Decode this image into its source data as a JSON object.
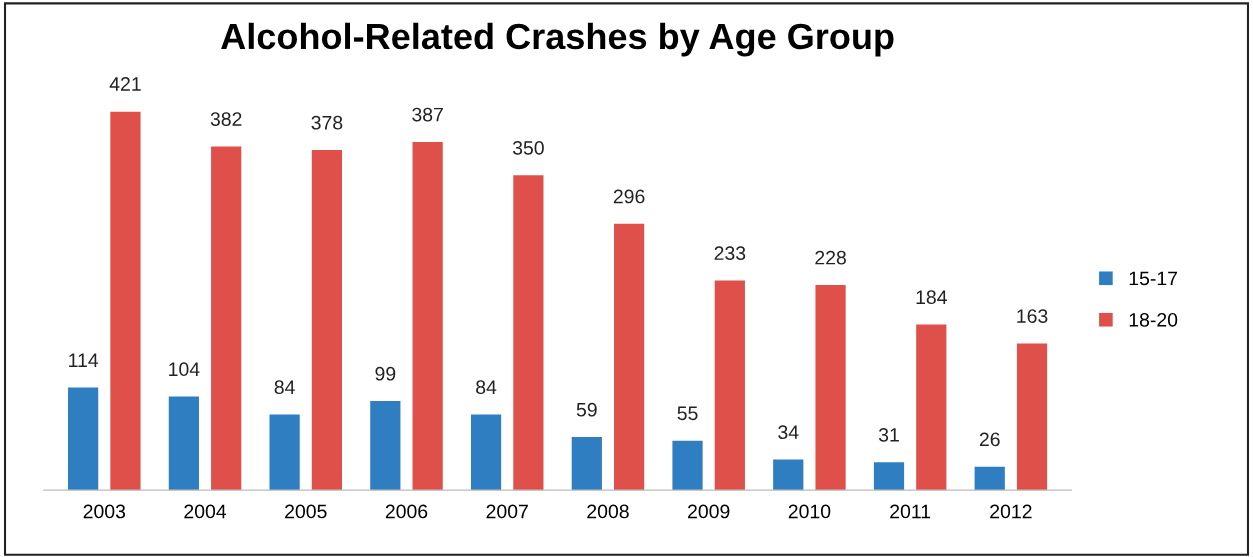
{
  "chart_data": {
    "type": "bar",
    "title": "Alcohol-Related Crashes by Age Group",
    "categories": [
      "2003",
      "2004",
      "2005",
      "2006",
      "2007",
      "2008",
      "2009",
      "2010",
      "2011",
      "2012"
    ],
    "series": [
      {
        "name": "15-17",
        "color": "#2f7ec1",
        "values": [
          114,
          104,
          84,
          99,
          84,
          59,
          55,
          34,
          31,
          26
        ]
      },
      {
        "name": "18-20",
        "color": "#e0504a",
        "values": [
          421,
          382,
          378,
          387,
          350,
          296,
          233,
          228,
          184,
          163
        ]
      }
    ],
    "data_labels": true,
    "legend": "right",
    "grid": false
  }
}
